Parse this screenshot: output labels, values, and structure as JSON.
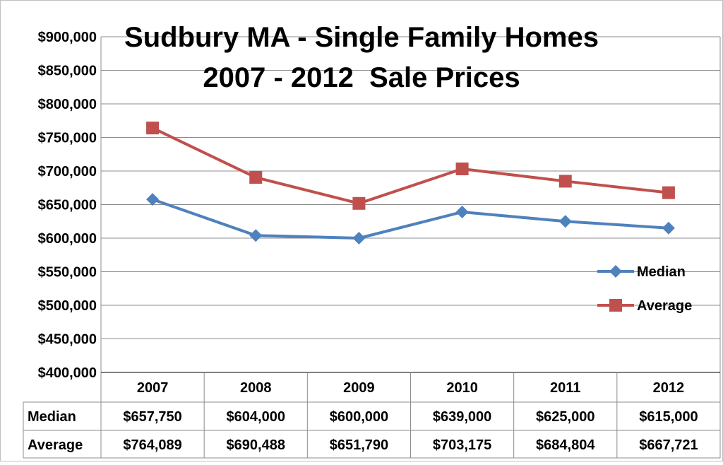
{
  "chart_data": {
    "type": "line",
    "title_line1": "Sudbury MA - Single Family Homes",
    "title_line2": "2007 - 2012  Sale Prices",
    "categories": [
      "2007",
      "2008",
      "2009",
      "2010",
      "2011",
      "2012"
    ],
    "y_ticks": [
      "$400,000",
      "$450,000",
      "$500,000",
      "$550,000",
      "$600,000",
      "$650,000",
      "$700,000",
      "$750,000",
      "$800,000",
      "$850,000",
      "$900,000"
    ],
    "ylim": [
      400000,
      900000
    ],
    "grid": true,
    "legend_position": "right",
    "series": [
      {
        "name": "Median",
        "color": "#4F81BD",
        "marker": "diamond",
        "values": [
          657750,
          604000,
          600000,
          639000,
          625000,
          615000
        ],
        "labels": [
          "$657,750",
          "$604,000",
          "$600,000",
          "$639,000",
          "$625,000",
          "$615,000"
        ]
      },
      {
        "name": "Average",
        "color": "#C0504D",
        "marker": "square",
        "values": [
          764089,
          690488,
          651790,
          703175,
          684804,
          667721
        ],
        "labels": [
          "$764,089",
          "$690,488",
          "$651,790",
          "$703,175",
          "$684,804",
          "$667,721"
        ]
      }
    ]
  }
}
